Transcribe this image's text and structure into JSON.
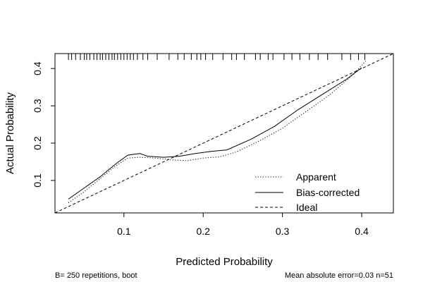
{
  "chart_data": {
    "type": "line",
    "xlabel": "Predicted Probability",
    "ylabel": "Actual Probability",
    "xlim": [
      0.013,
      0.44
    ],
    "ylim": [
      0.013,
      0.44
    ],
    "x_ticks": [
      0.1,
      0.2,
      0.3,
      0.4
    ],
    "x_tick_labels": [
      "0.1",
      "0.2",
      "0.3",
      "0.4"
    ],
    "y_ticks": [
      0.1,
      0.2,
      0.3,
      0.4
    ],
    "y_tick_labels": [
      "0.1",
      "0.2",
      "0.3",
      "0.4"
    ],
    "grid": false,
    "legend_position": "bottom-right",
    "series": [
      {
        "name": "Apparent",
        "style": "dotted",
        "x": [
          0.03,
          0.05,
          0.07,
          0.09,
          0.105,
          0.12,
          0.14,
          0.16,
          0.18,
          0.2,
          0.22,
          0.24,
          0.27,
          0.3,
          0.33,
          0.36,
          0.39,
          0.405
        ],
        "y": [
          0.04,
          0.07,
          0.105,
          0.14,
          0.16,
          0.162,
          0.16,
          0.155,
          0.153,
          0.16,
          0.163,
          0.175,
          0.205,
          0.24,
          0.285,
          0.33,
          0.385,
          0.42
        ]
      },
      {
        "name": "Bias-corrected",
        "style": "solid",
        "x": [
          0.03,
          0.05,
          0.07,
          0.09,
          0.105,
          0.12,
          0.13,
          0.15,
          0.17,
          0.19,
          0.21,
          0.23,
          0.26,
          0.29,
          0.32,
          0.35,
          0.38,
          0.4
        ],
        "y": [
          0.05,
          0.08,
          0.11,
          0.145,
          0.168,
          0.172,
          0.165,
          0.162,
          0.165,
          0.172,
          0.178,
          0.182,
          0.21,
          0.245,
          0.29,
          0.33,
          0.37,
          0.402
        ]
      },
      {
        "name": "Ideal",
        "style": "dashed",
        "x": [
          0.013,
          0.44
        ],
        "y": [
          0.013,
          0.44
        ]
      }
    ],
    "rug": [
      0.03,
      0.034,
      0.039,
      0.045,
      0.05,
      0.053,
      0.057,
      0.062,
      0.066,
      0.07,
      0.073,
      0.077,
      0.081,
      0.085,
      0.088,
      0.092,
      0.096,
      0.1,
      0.104,
      0.108,
      0.112,
      0.117,
      0.124,
      0.13,
      0.142,
      0.157,
      0.168,
      0.176,
      0.185,
      0.192,
      0.197,
      0.203,
      0.212,
      0.225,
      0.236,
      0.242,
      0.252,
      0.266,
      0.272,
      0.282,
      0.288,
      0.302,
      0.312,
      0.322,
      0.334,
      0.345,
      0.357,
      0.375,
      0.386,
      0.396,
      0.404
    ]
  },
  "footnote_left": "B= 250 repetitions, boot",
  "footnote_right": "Mean absolute error=0.03 n=51"
}
